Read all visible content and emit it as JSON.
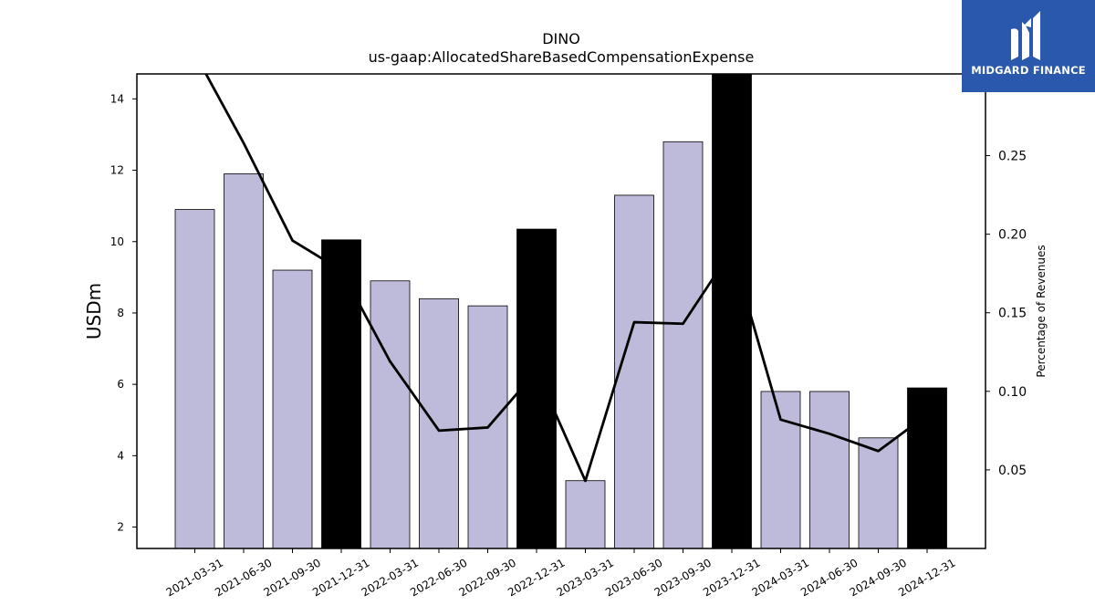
{
  "chart_data": {
    "type": "bar",
    "title": "DINO",
    "subtitle": "us-gaap:AllocatedShareBasedCompensationExpense",
    "ylabel": "USDm",
    "y2label": "Percentage of Revenues",
    "categories": [
      "2021-03-31",
      "2021-06-30",
      "2021-09-30",
      "2021-12-31",
      "2022-03-31",
      "2022-06-30",
      "2022-09-30",
      "2022-12-31",
      "2023-03-31",
      "2023-06-30",
      "2023-09-30",
      "2023-12-31",
      "2024-03-31",
      "2024-06-30",
      "2024-09-30",
      "2024-12-31"
    ],
    "series": [
      {
        "type": "bar",
        "axis": "left",
        "values": [
          10.9,
          11.9,
          9.2,
          10.05,
          8.9,
          8.4,
          8.2,
          10.35,
          3.3,
          11.3,
          12.8,
          14.7,
          5.8,
          5.8,
          4.5,
          5.9
        ],
        "highlight": [
          false,
          false,
          false,
          true,
          false,
          false,
          false,
          true,
          false,
          false,
          false,
          true,
          false,
          false,
          false,
          true
        ]
      },
      {
        "type": "line",
        "axis": "right",
        "values": [
          0.315,
          0.258,
          0.196,
          0.177,
          0.119,
          0.075,
          0.077,
          0.113,
          0.043,
          0.144,
          0.143,
          0.19,
          0.082,
          0.073,
          0.062,
          0.085
        ]
      }
    ],
    "ylim": [
      1.4,
      14.7
    ],
    "y2lim": [
      0.0,
      0.302
    ],
    "yticks": [
      2,
      4,
      6,
      8,
      10,
      12,
      14
    ],
    "y2ticks": [
      0.05,
      0.1,
      0.15,
      0.2,
      0.25
    ],
    "grid": false,
    "colors": {
      "bar": "#bebad9",
      "highlight_bar": "#000000",
      "line": "#000000"
    }
  },
  "logo": {
    "text": "MIDGARD FINANCE"
  }
}
